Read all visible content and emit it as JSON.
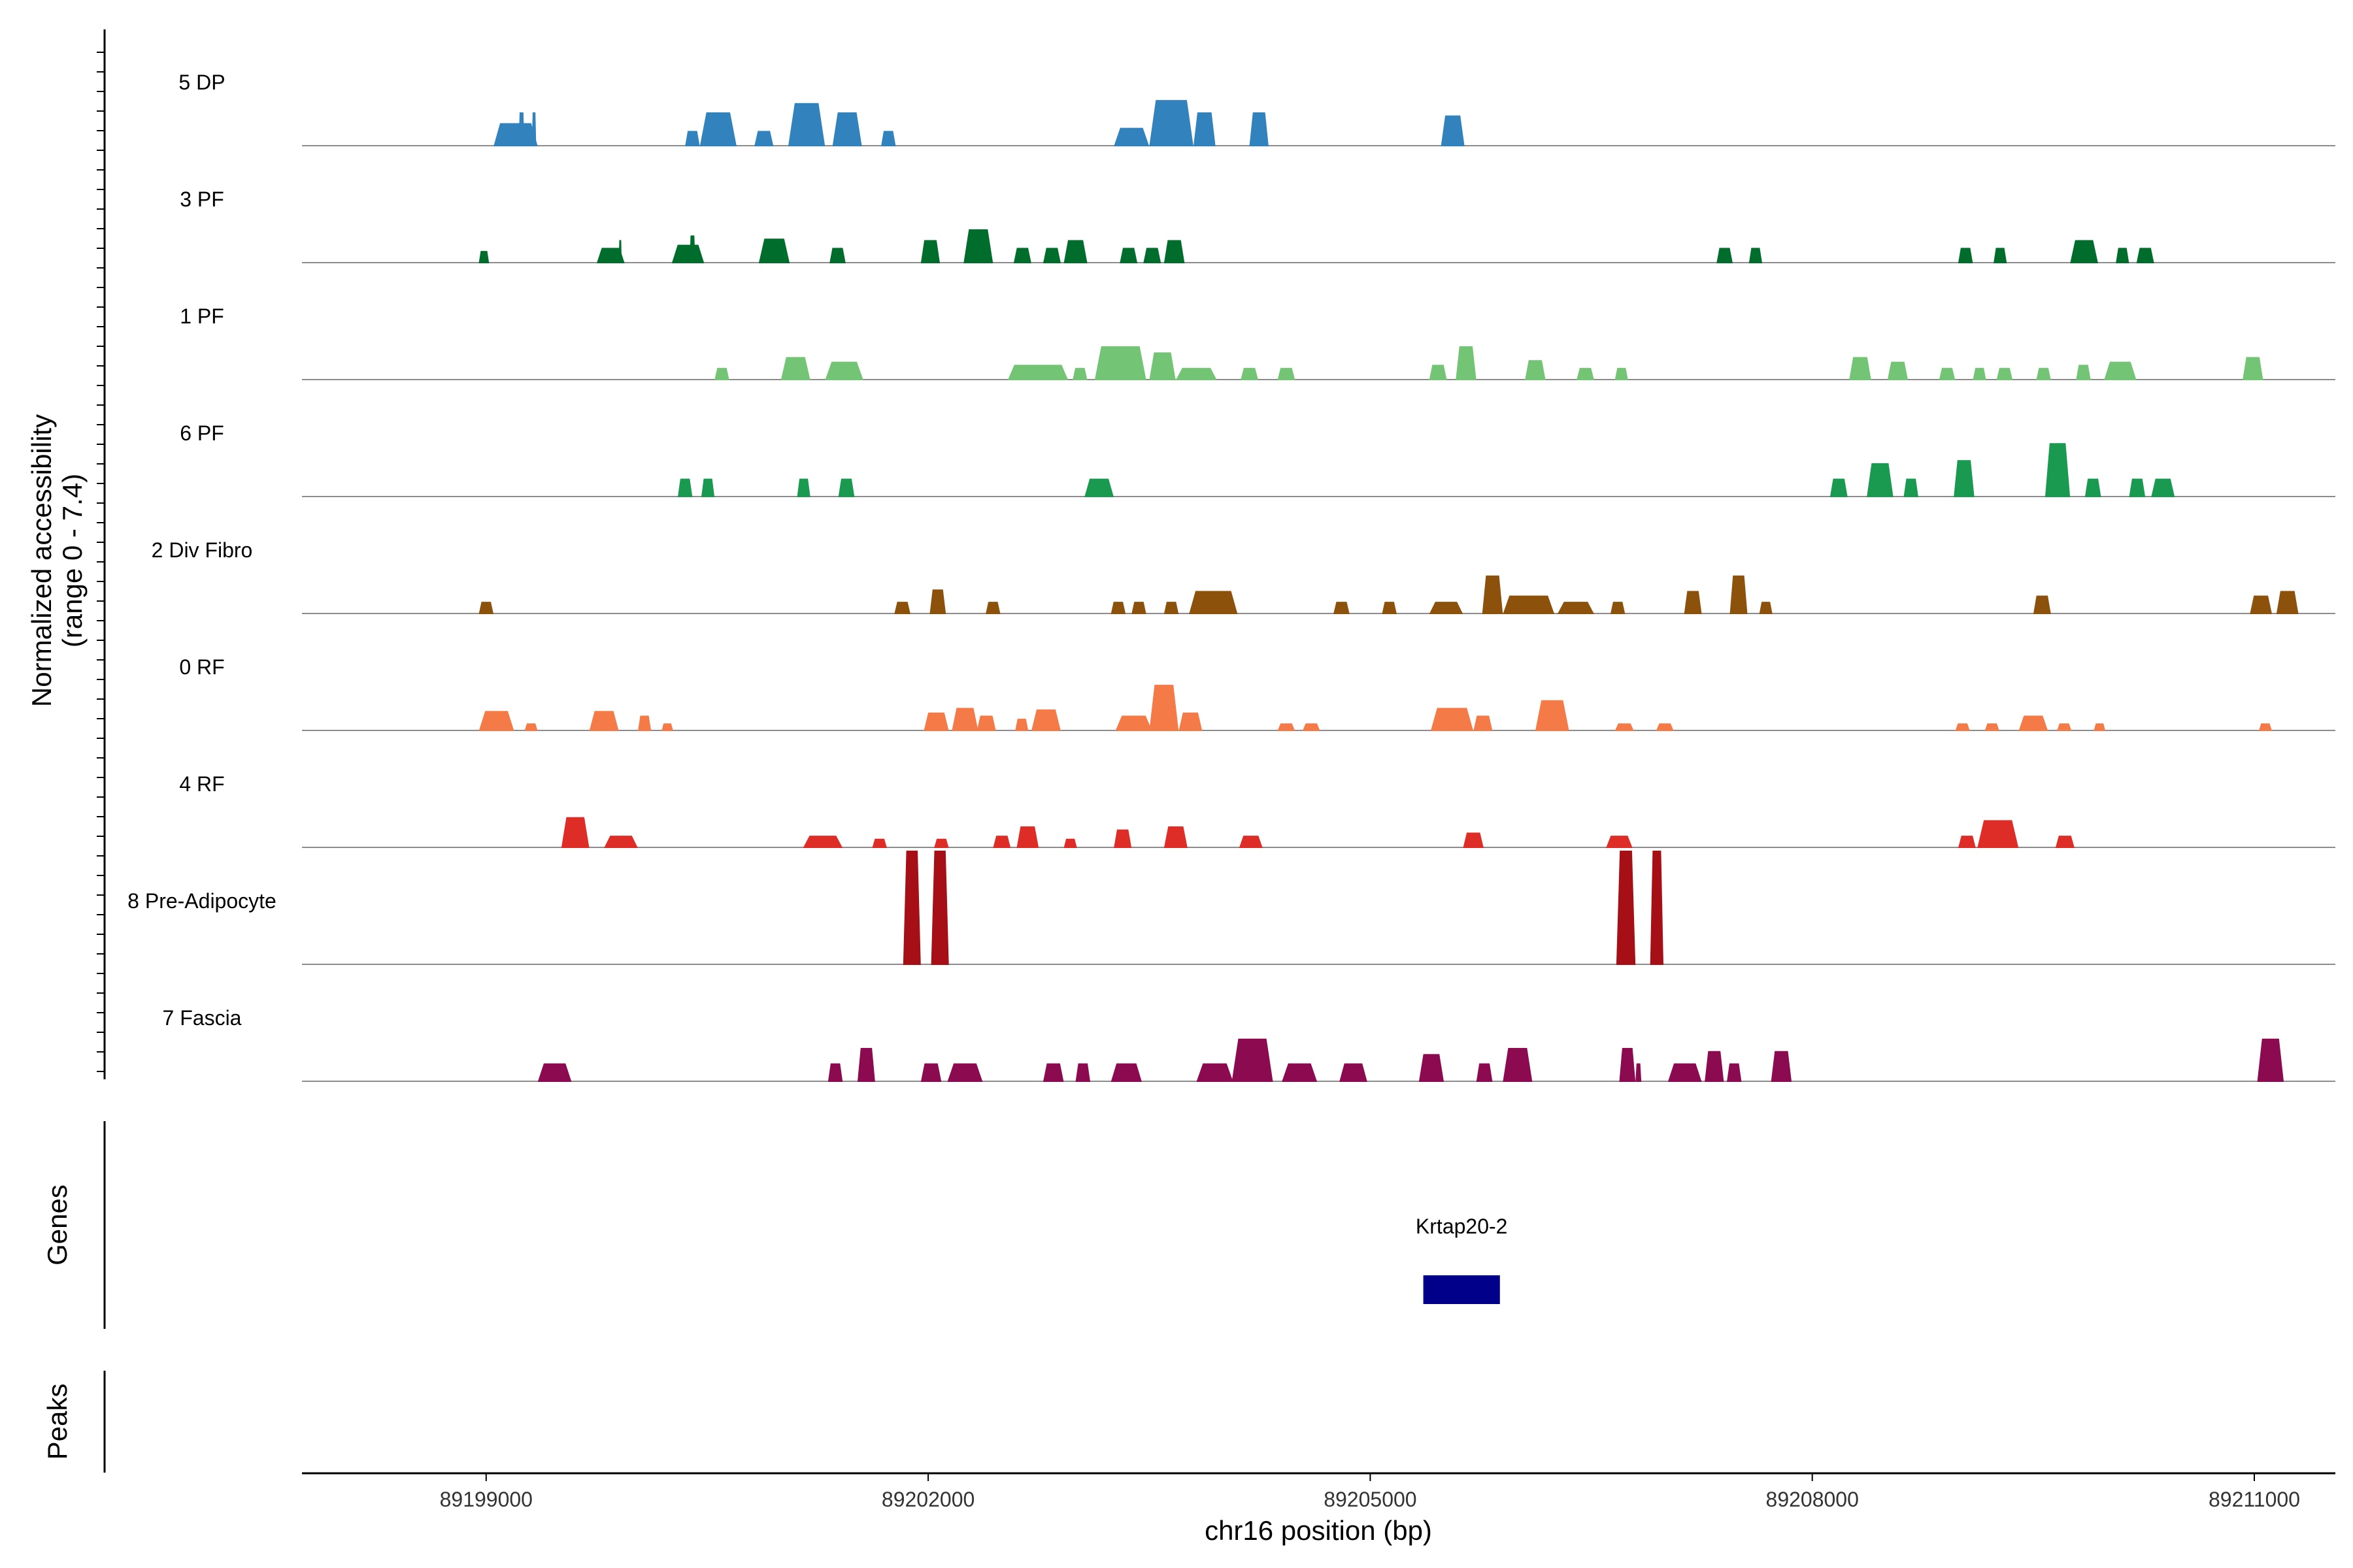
{
  "chart_data": {
    "type": "area",
    "title": "",
    "xlabel": "chr16 position (bp)",
    "ylabel_line1": "Normalized accessibility",
    "ylabel_line2": "(range 0 - 7.4)",
    "xlim": [
      89197750,
      89211550
    ],
    "ylim": [
      0,
      7.4
    ],
    "x_ticks": [
      89199000,
      89202000,
      89205000,
      89208000,
      89211000
    ],
    "x_tick_labels": [
      "89199000",
      "89202000",
      "89205000",
      "89208000",
      "89211000"
    ],
    "series": [
      {
        "name": "5 DP",
        "color": "#3182BD",
        "peaks": [
          [
            89199050,
            89199350,
            1.5
          ],
          [
            89199220,
            89199260,
            2.2
          ],
          [
            89199310,
            89199340,
            2.2
          ],
          [
            89200350,
            89200450,
            1.0
          ],
          [
            89200450,
            89200700,
            2.2
          ],
          [
            89200820,
            89200950,
            1.0
          ],
          [
            89201050,
            89201300,
            2.8
          ],
          [
            89201350,
            89201550,
            2.2
          ],
          [
            89201680,
            89201780,
            1.0
          ],
          [
            89203260,
            89203500,
            1.2
          ],
          [
            89203500,
            89203800,
            3.0
          ],
          [
            89203800,
            89203950,
            2.2
          ],
          [
            89204180,
            89204310,
            2.2
          ],
          [
            89205480,
            89205640,
            2.0
          ]
        ]
      },
      {
        "name": "3 PF",
        "color": "#006D2C",
        "peaks": [
          [
            89198950,
            89199020,
            0.8
          ],
          [
            89199750,
            89199940,
            1.0
          ],
          [
            89199900,
            89199920,
            1.5
          ],
          [
            89200260,
            89200480,
            1.2
          ],
          [
            89200380,
            89200420,
            1.8
          ],
          [
            89200850,
            89201060,
            1.6
          ],
          [
            89201330,
            89201440,
            1.0
          ],
          [
            89201950,
            89202080,
            1.5
          ],
          [
            89202240,
            89202440,
            2.2
          ],
          [
            89202580,
            89202700,
            1.0
          ],
          [
            89202780,
            89202900,
            1.0
          ],
          [
            89202920,
            89203080,
            1.5
          ],
          [
            89203300,
            89203420,
            1.0
          ],
          [
            89203460,
            89203580,
            1.0
          ],
          [
            89203600,
            89203740,
            1.5
          ],
          [
            89207350,
            89207460,
            1.0
          ],
          [
            89207570,
            89207660,
            1.0
          ],
          [
            89208990,
            89209090,
            1.0
          ],
          [
            89209230,
            89209320,
            1.0
          ],
          [
            89209750,
            89209940,
            1.5
          ],
          [
            89210060,
            89210150,
            1.0
          ],
          [
            89210200,
            89210320,
            1.0
          ]
        ]
      },
      {
        "name": "1 PF",
        "color": "#74C476",
        "peaks": [
          [
            89200550,
            89200650,
            0.8
          ],
          [
            89201000,
            89201200,
            1.5
          ],
          [
            89201300,
            89201560,
            1.2
          ],
          [
            89202540,
            89202950,
            1.0
          ],
          [
            89202980,
            89203080,
            0.8
          ],
          [
            89203130,
            89203480,
            2.2
          ],
          [
            89203500,
            89203680,
            1.8
          ],
          [
            89203680,
            89203960,
            0.8
          ],
          [
            89204120,
            89204240,
            0.8
          ],
          [
            89204370,
            89204490,
            0.8
          ],
          [
            89205400,
            89205520,
            1.0
          ],
          [
            89205580,
            89205720,
            2.2
          ],
          [
            89206050,
            89206190,
            1.3
          ],
          [
            89206400,
            89206520,
            0.8
          ],
          [
            89206660,
            89206750,
            0.8
          ],
          [
            89208250,
            89208400,
            1.5
          ],
          [
            89208510,
            89208650,
            1.2
          ],
          [
            89208860,
            89208970,
            0.8
          ],
          [
            89209090,
            89209180,
            0.8
          ],
          [
            89209250,
            89209360,
            0.8
          ],
          [
            89209520,
            89209620,
            0.8
          ],
          [
            89209790,
            89209890,
            1.0
          ],
          [
            89209980,
            89210200,
            1.2
          ],
          [
            89210920,
            89211060,
            1.5
          ]
        ]
      },
      {
        "name": "6 PF",
        "color": "#1A9A50",
        "peaks": [
          [
            89200300,
            89200400,
            1.2
          ],
          [
            89200460,
            89200550,
            1.2
          ],
          [
            89201110,
            89201200,
            1.2
          ],
          [
            89201390,
            89201500,
            1.2
          ],
          [
            89203060,
            89203260,
            1.2
          ],
          [
            89208120,
            89208240,
            1.2
          ],
          [
            89208370,
            89208550,
            2.2
          ],
          [
            89208620,
            89208720,
            1.2
          ],
          [
            89208960,
            89209100,
            2.4
          ],
          [
            89209580,
            89209750,
            3.5
          ],
          [
            89209850,
            89209960,
            1.2
          ],
          [
            89210150,
            89210260,
            1.2
          ],
          [
            89210300,
            89210460,
            1.2
          ]
        ]
      },
      {
        "name": "2 Div Fibro",
        "color": "#8C510A",
        "peaks": [
          [
            89198950,
            89199050,
            0.8
          ],
          [
            89201770,
            89201880,
            0.8
          ],
          [
            89202010,
            89202120,
            1.6
          ],
          [
            89202390,
            89202490,
            0.8
          ],
          [
            89203240,
            89203340,
            0.8
          ],
          [
            89203380,
            89203480,
            0.8
          ],
          [
            89203600,
            89203700,
            0.8
          ],
          [
            89203770,
            89204100,
            1.5
          ],
          [
            89204750,
            89204860,
            0.8
          ],
          [
            89205080,
            89205180,
            0.8
          ],
          [
            89205400,
            89205630,
            0.8
          ],
          [
            89205760,
            89205900,
            2.5
          ],
          [
            89205900,
            89206250,
            1.2
          ],
          [
            89206270,
            89206520,
            0.8
          ],
          [
            89206630,
            89206730,
            0.8
          ],
          [
            89207130,
            89207250,
            1.5
          ],
          [
            89207440,
            89207560,
            2.5
          ],
          [
            89207640,
            89207730,
            0.8
          ],
          [
            89209500,
            89209620,
            1.2
          ],
          [
            89210970,
            89211120,
            1.2
          ],
          [
            89211150,
            89211300,
            1.5
          ]
        ]
      },
      {
        "name": "0 RF",
        "color": "#F47A47",
        "peaks": [
          [
            89198950,
            89199190,
            1.3
          ],
          [
            89199260,
            89199350,
            0.5
          ],
          [
            89199700,
            89199900,
            1.3
          ],
          [
            89200030,
            89200120,
            1.0
          ],
          [
            89200190,
            89200270,
            0.5
          ],
          [
            89201970,
            89202140,
            1.2
          ],
          [
            89202160,
            89202340,
            1.5
          ],
          [
            89202330,
            89202460,
            1.0
          ],
          [
            89202590,
            89202680,
            0.8
          ],
          [
            89202700,
            89202900,
            1.4
          ],
          [
            89203270,
            89203520,
            1.0
          ],
          [
            89203500,
            89203700,
            3.0
          ],
          [
            89203700,
            89203860,
            1.2
          ],
          [
            89204370,
            89204490,
            0.5
          ],
          [
            89204540,
            89204660,
            0.5
          ],
          [
            89205410,
            89205700,
            1.5
          ],
          [
            89205700,
            89205830,
            1.0
          ],
          [
            89206120,
            89206350,
            2.0
          ],
          [
            89206660,
            89206790,
            0.5
          ],
          [
            89206940,
            89207060,
            0.5
          ],
          [
            89208970,
            89209070,
            0.5
          ],
          [
            89209170,
            89209270,
            0.5
          ],
          [
            89209400,
            89209600,
            1.0
          ],
          [
            89209660,
            89209760,
            0.5
          ],
          [
            89209910,
            89209990,
            0.5
          ],
          [
            89211030,
            89211120,
            0.5
          ]
        ]
      },
      {
        "name": "4 RF",
        "color": "#DE2D26",
        "peaks": [
          [
            89199510,
            89199700,
            2.0
          ],
          [
            89199800,
            89200030,
            0.8
          ],
          [
            89201150,
            89201420,
            0.8
          ],
          [
            89201620,
            89201720,
            0.6
          ],
          [
            89202040,
            89202140,
            0.6
          ],
          [
            89202440,
            89202560,
            0.8
          ],
          [
            89202600,
            89202750,
            1.4
          ],
          [
            89202920,
            89203010,
            0.6
          ],
          [
            89203260,
            89203380,
            1.2
          ],
          [
            89203600,
            89203760,
            1.4
          ],
          [
            89204110,
            89204270,
            0.8
          ],
          [
            89205630,
            89205770,
            1.0
          ],
          [
            89206600,
            89206780,
            0.8
          ],
          [
            89208990,
            89209110,
            0.8
          ],
          [
            89209120,
            89209400,
            1.8
          ],
          [
            89209650,
            89209780,
            0.8
          ]
        ]
      },
      {
        "name": "8 Pre-Adipocyte",
        "color": "#A50F15",
        "peaks": [
          [
            89201830,
            89201950,
            7.4
          ],
          [
            89202020,
            89202140,
            7.4
          ],
          [
            89206670,
            89206800,
            7.4
          ],
          [
            89206900,
            89206990,
            7.4
          ]
        ]
      },
      {
        "name": "7 Fascia",
        "color": "#8B0A50",
        "peaks": [
          [
            89199350,
            89199580,
            1.2
          ],
          [
            89201320,
            89201420,
            1.2
          ],
          [
            89201520,
            89201640,
            2.2
          ],
          [
            89201950,
            89202090,
            1.2
          ],
          [
            89202130,
            89202370,
            1.2
          ],
          [
            89202780,
            89202920,
            1.2
          ],
          [
            89203000,
            89203100,
            1.2
          ],
          [
            89203240,
            89203450,
            1.2
          ],
          [
            89203820,
            89204070,
            1.2
          ],
          [
            89204060,
            89204340,
            2.8
          ],
          [
            89204400,
            89204640,
            1.2
          ],
          [
            89204790,
            89204980,
            1.2
          ],
          [
            89205330,
            89205500,
            1.8
          ],
          [
            89205720,
            89205830,
            1.2
          ],
          [
            89205900,
            89206100,
            2.2
          ],
          [
            89206690,
            89206800,
            2.2
          ],
          [
            89206800,
            89206840,
            1.2
          ],
          [
            89207020,
            89207250,
            1.2
          ],
          [
            89207270,
            89207400,
            2.0
          ],
          [
            89207420,
            89207520,
            1.2
          ],
          [
            89207720,
            89207860,
            2.0
          ],
          [
            89211020,
            89211200,
            2.8
          ]
        ]
      }
    ],
    "genes_track_label": "Genes",
    "peaks_track_label": "Peaks",
    "gene": {
      "name": "Krtap20-2",
      "start": 89205360,
      "end": 89205880,
      "color": "#00008B"
    }
  }
}
